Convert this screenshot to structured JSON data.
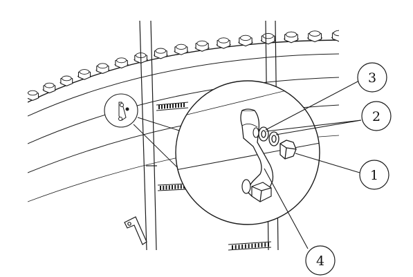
{
  "diagram": {
    "callouts": [
      {
        "id": "c3",
        "label": "3"
      },
      {
        "id": "c2",
        "label": "2"
      },
      {
        "id": "c1",
        "label": "1"
      },
      {
        "id": "c4",
        "label": "4"
      }
    ],
    "colors": {
      "line": "#1a1a1a",
      "detail_fill": "#ffffff",
      "callout_fill": "#ffffff"
    }
  }
}
